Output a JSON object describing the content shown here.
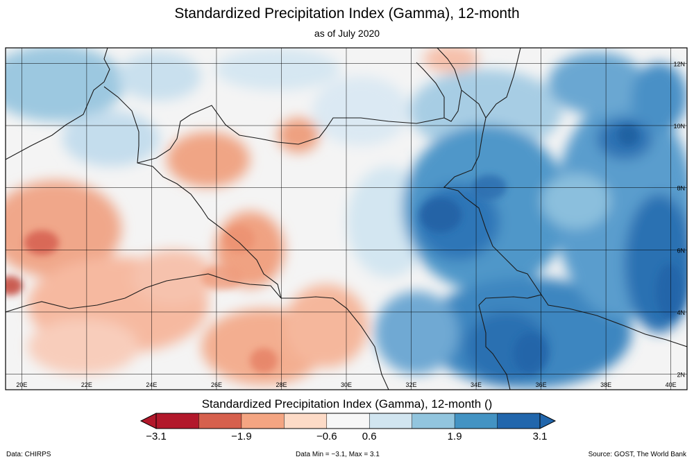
{
  "title": "Standardized Precipitation Index (Gamma), 12-month",
  "subtitle": "as of July 2020",
  "map": {
    "lon_range": [
      19.5,
      40.5
    ],
    "lat_range": [
      1.5,
      12.5
    ],
    "lon_ticks": [
      "20E",
      "22E",
      "24E",
      "26E",
      "28E",
      "30E",
      "32E",
      "34E",
      "36E",
      "38E",
      "40E"
    ],
    "lat_ticks": [
      "2N",
      "4N",
      "6N",
      "8N",
      "10N",
      "12N"
    ]
  },
  "colorbar": {
    "title": "Standardized Precipitation Index (Gamma), 12-month ()",
    "tick_labels": [
      "−3.1",
      "−1.9",
      "−0.6",
      "0.6",
      "1.9",
      "3.1"
    ],
    "colors": [
      "#b2182b",
      "#d6604d",
      "#f4a582",
      "#fddbc7",
      "#f7f7f7",
      "#d1e5f0",
      "#92c5de",
      "#4393c3",
      "#2166ac"
    ],
    "extend_low_color": "#b2182b",
    "extend_high_color": "#2166ac"
  },
  "footer": {
    "data_source": "Data: CHIRPS",
    "data_range": "Data Min = −3.1, Max = 3.1",
    "credit": "Source: GOST, The World Bank"
  }
}
